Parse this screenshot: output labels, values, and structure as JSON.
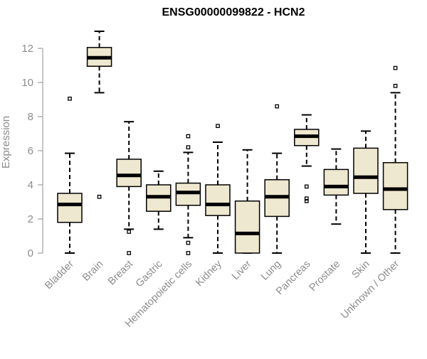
{
  "chart_data": {
    "type": "boxplot",
    "title": "ENSG00000099822 - HCN2",
    "ylabel": "Expression",
    "xlabel": "",
    "ylim": [
      0,
      12.5
    ],
    "yticks": [
      0,
      2,
      4,
      6,
      8,
      10,
      12
    ],
    "colors": {
      "box_fill": "#efe8d0",
      "box_stroke": "#000000",
      "median": "#000000",
      "axis": "#8c8c8c",
      "text": "#8c8c8c"
    },
    "categories": [
      "Bladder",
      "Brain",
      "Breast",
      "Gastric",
      "Hematopoietic cells",
      "Kidney",
      "Liver",
      "Lung",
      "Pancreas",
      "Prostate",
      "Skin",
      "Unknown / Other"
    ],
    "boxes": [
      {
        "category": "Bladder",
        "whisker_low": 0,
        "q1": 1.8,
        "median": 2.85,
        "q3": 3.5,
        "whisker_high": 5.85,
        "outliers": [
          9.05
        ]
      },
      {
        "category": "Brain",
        "whisker_low": 9.4,
        "q1": 10.95,
        "median": 11.45,
        "q3": 12.05,
        "whisker_high": 13.0,
        "outliers": [
          3.3
        ]
      },
      {
        "category": "Breast",
        "whisker_low": 1.4,
        "q1": 3.9,
        "median": 4.55,
        "q3": 5.5,
        "whisker_high": 7.7,
        "outliers": [
          1.25,
          0.0
        ]
      },
      {
        "category": "Gastric",
        "whisker_low": 1.4,
        "q1": 2.45,
        "median": 3.3,
        "q3": 4.0,
        "whisker_high": 4.8,
        "outliers": []
      },
      {
        "category": "Hematopoietic cells",
        "whisker_low": 0.9,
        "q1": 2.8,
        "median": 3.55,
        "q3": 4.1,
        "whisker_high": 5.9,
        "outliers": [
          6.85,
          6.2,
          0.6,
          0.0
        ]
      },
      {
        "category": "Kidney",
        "whisker_low": 0,
        "q1": 2.2,
        "median": 2.85,
        "q3": 4.0,
        "whisker_high": 6.5,
        "outliers": [
          7.45
        ]
      },
      {
        "category": "Liver",
        "whisker_low": 0,
        "q1": 0,
        "median": 1.15,
        "q3": 3.05,
        "whisker_high": 6.05,
        "outliers": []
      },
      {
        "category": "Lung",
        "whisker_low": 0,
        "q1": 2.15,
        "median": 3.3,
        "q3": 4.3,
        "whisker_high": 5.85,
        "outliers": [
          8.6
        ]
      },
      {
        "category": "Pancreas",
        "whisker_low": 5.1,
        "q1": 6.3,
        "median": 6.85,
        "q3": 7.25,
        "whisker_high": 8.1,
        "outliers": [
          3.9,
          3.2,
          3.05
        ]
      },
      {
        "category": "Prostate",
        "whisker_low": 1.7,
        "q1": 3.4,
        "median": 3.9,
        "q3": 4.9,
        "whisker_high": 6.1,
        "outliers": []
      },
      {
        "category": "Skin",
        "whisker_low": 0,
        "q1": 3.5,
        "median": 4.45,
        "q3": 6.15,
        "whisker_high": 7.15,
        "outliers": []
      },
      {
        "category": "Unknown / Other",
        "whisker_low": 0,
        "q1": 2.55,
        "median": 3.75,
        "q3": 5.3,
        "whisker_high": 9.4,
        "outliers": [
          10.85,
          9.8
        ]
      }
    ],
    "grid": false,
    "legend": "none"
  }
}
